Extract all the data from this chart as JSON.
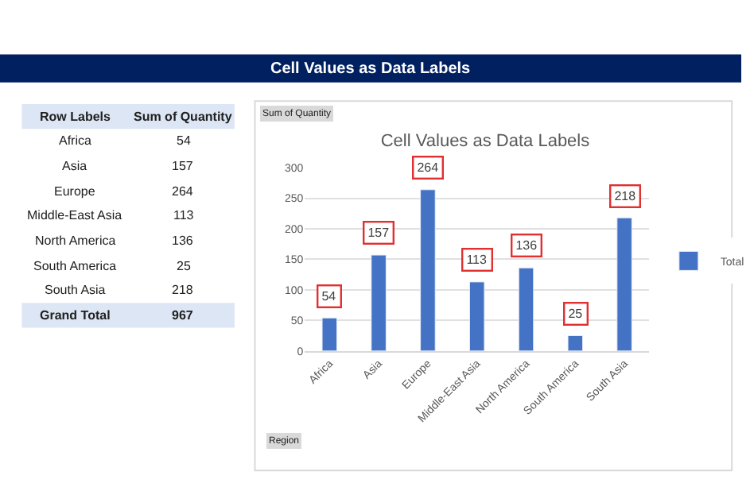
{
  "chart_data": [
    {
      "type": "other",
      "title": "Cell Values as Data Labels",
      "annotations": [
        "Row Labels",
        "Sum of Quantity",
        "Africa",
        "54",
        "Asia",
        "157",
        "Europe",
        "264",
        "Middle-East Asia",
        "113",
        "North America",
        "136",
        "South America",
        "25",
        "South Asia",
        "218",
        "Grand Total",
        "967"
      ]
    },
    {
      "type": "bar",
      "title": "Cell Values as Data Labels",
      "categories": [
        "Africa",
        "Asia",
        "Europe",
        "Middle-East Asia",
        "North America",
        "South America",
        "South Asia"
      ],
      "series": [
        {
          "name": "Total",
          "color": "#4472c4",
          "values": [
            54,
            157,
            264,
            113,
            136,
            25,
            218
          ]
        }
      ],
      "ylim": [
        0,
        300
      ],
      "yticks": [
        0,
        50,
        100,
        150,
        200,
        250,
        300
      ],
      "grid": "y",
      "legend": "right",
      "data_labels": true,
      "annotations": [
        "Sum of Quantity",
        "Region"
      ]
    }
  ]
}
